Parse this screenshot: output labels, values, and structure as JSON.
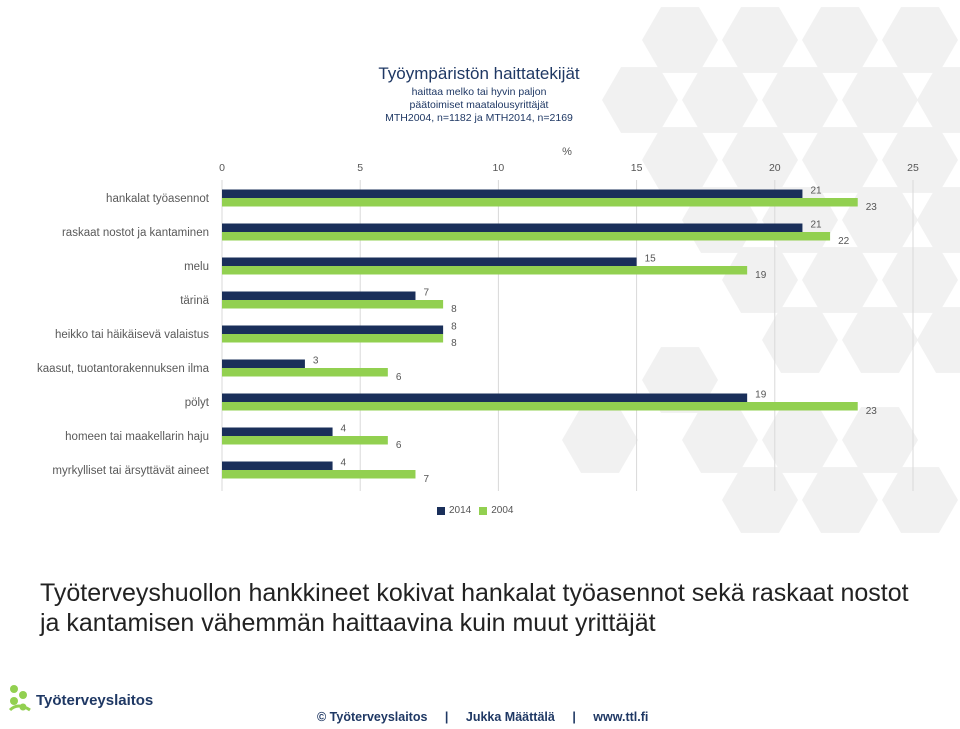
{
  "chart_data": {
    "type": "bar",
    "orientation": "horizontal",
    "title": "Työympäristön haittatekijät",
    "subtitle": [
      "haittaa melko tai hyvin paljon",
      "päätoimiset maatalousyrittäjät",
      "MTH2004, n=1182 ja MTH2014, n=2169"
    ],
    "xlabel": "%",
    "xlim": [
      0,
      25
    ],
    "xticks": [
      0,
      5,
      10,
      15,
      20,
      25
    ],
    "grid": true,
    "legend_position": "bottom",
    "categories": [
      "hankalat työasennot",
      "raskaat nostot ja kantaminen",
      "melu",
      "tärinä",
      "heikko tai häikäisevä valaistus",
      "kaasut, tuotantorakennuksen ilma",
      "pölyt",
      "homeen tai maakellarin haju",
      "myrkylliset tai ärsyttävät aineet"
    ],
    "series": [
      {
        "name": "2014",
        "color": "#1a2f5a",
        "values": [
          21,
          21,
          15,
          7,
          8,
          3,
          19,
          4,
          4
        ]
      },
      {
        "name": "2004",
        "color": "#92d050",
        "values": [
          23,
          22,
          19,
          8,
          8,
          6,
          23,
          6,
          7
        ]
      }
    ]
  },
  "headline": "Työterveyshuollon hankkineet kokivat hankalat työasennot sekä raskaat nostot ja kantamisen vähemmän haittaavina kuin muut yrittäjät",
  "footer": {
    "copyright": "© Työterveyslaitos",
    "author": "Jukka Määttälä",
    "url": "www.ttl.fi",
    "separator": "|"
  },
  "logo": {
    "text": "Työterveyslaitos",
    "icon": "ttl-logo-icon",
    "colors": [
      "#92d050",
      "#1f3864"
    ]
  },
  "colors": {
    "hex_background": "#f1f1f1",
    "accent_dark": "#1a2f5a",
    "accent_green": "#92d050"
  }
}
